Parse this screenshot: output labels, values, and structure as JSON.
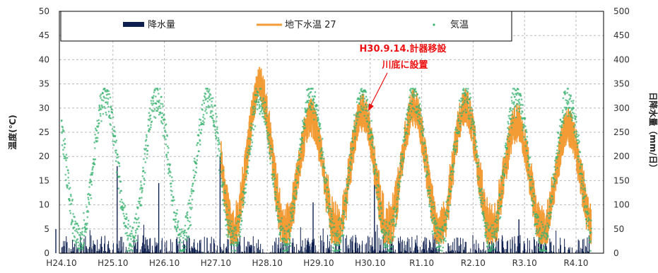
{
  "chart_data": {
    "type": "line",
    "x_categories": [
      "H24.10",
      "H25.10",
      "H26.10",
      "H27.10",
      "H28.10",
      "H29.10",
      "H30.10",
      "R1.10",
      "R2.10",
      "R3.10",
      "R4.10"
    ],
    "y_left": {
      "label": "温度(℃)",
      "range": [
        0,
        50
      ],
      "ticks": [
        0,
        5,
        10,
        15,
        20,
        25,
        30,
        35,
        40,
        45,
        50
      ]
    },
    "y_right": {
      "label": "日降水量（mm/日）",
      "range": [
        0,
        500
      ],
      "ticks": [
        0,
        50,
        100,
        150,
        200,
        250,
        300,
        350,
        400,
        450,
        500
      ]
    },
    "grid": true,
    "legend_position": "top",
    "series": [
      {
        "name": "降水量",
        "kind": "bar",
        "axis": "right",
        "color": "#0d1f4f",
        "notable_spikes": [
          {
            "x": "H24.10",
            "value": 50
          },
          {
            "x": "H25.10",
            "value": 180
          },
          {
            "x": "H26.10",
            "value": 145
          },
          {
            "x": "H27.10",
            "value": 200
          },
          {
            "x": "H29.10",
            "value": 105
          },
          {
            "x": "H30.10",
            "value": 200
          },
          {
            "x": "R3.10",
            "value": 70
          }
        ]
      },
      {
        "name": "地下水温27",
        "legend_label": "地下水温 27",
        "kind": "line",
        "axis": "left",
        "color": "#f39b35",
        "start": "H27.10",
        "annual_peaks": [
          {
            "label": "H28",
            "value": 38.5
          },
          {
            "label": "H29",
            "value": 32
          },
          {
            "label": "H30",
            "value": 33
          },
          {
            "label": "R1",
            "value": 34
          },
          {
            "label": "R2",
            "value": 34
          },
          {
            "label": "R3",
            "value": 31
          },
          {
            "label": "R4",
            "value": 30
          }
        ],
        "annual_low_range": [
          3,
          7
        ]
      },
      {
        "name": "気温",
        "kind": "scatter",
        "axis": "left",
        "color": "#3cb371",
        "peak_range": [
          31,
          33
        ],
        "low_range": [
          1,
          4
        ]
      }
    ],
    "annotation": {
      "lines": [
        "H30.9.14.計器移設",
        "川底に設置"
      ],
      "color": "#ee1111"
    }
  }
}
